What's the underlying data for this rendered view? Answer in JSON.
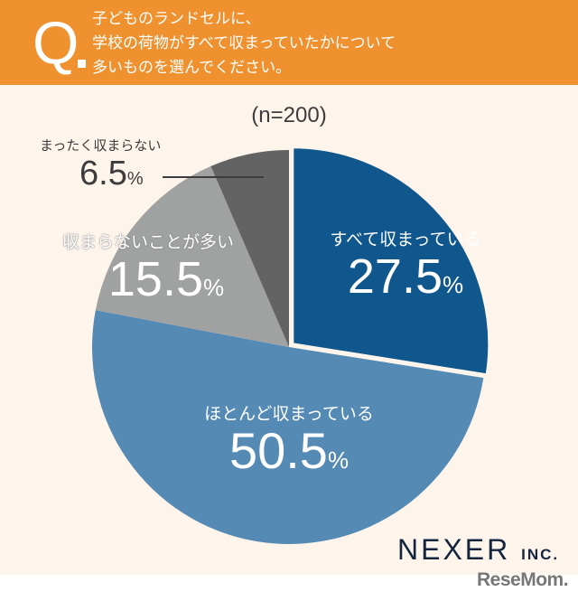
{
  "header": {
    "q_mark": "Q",
    "question_lines": [
      "子どものランドセルに、",
      "学校の荷物がすべて収まっていたかについて",
      "多いものを選んでください。"
    ],
    "color": "#ef912e"
  },
  "sample_size": "(n=200)",
  "labels": {
    "s0": {
      "category": "すべて収まっている",
      "value": "27.5",
      "unit": "%"
    },
    "s1": {
      "category": "ほとんど収まっている",
      "value": "50.5",
      "unit": "%"
    },
    "s2": {
      "category": "収まらないことが多い",
      "value": "15.5",
      "unit": "%"
    },
    "s3": {
      "category": "まったく収まらない",
      "value": "6.5",
      "unit": "%"
    }
  },
  "branding": {
    "company": "NEXER",
    "company_suffix": "INC.",
    "source_logo": "ReseMom."
  },
  "chart_data": {
    "type": "pie",
    "title": "子どものランドセルに、学校の荷物がすべて収まっていたかについて多いものを選んでください。",
    "subtitle": "(n=200)",
    "categories": [
      "すべて収まっている",
      "ほとんど収まっている",
      "収まらないことが多い",
      "まったく収まらない"
    ],
    "values": [
      27.5,
      50.5,
      15.5,
      6.5
    ],
    "unit": "%",
    "colors": [
      "#0f578c",
      "#558ab4",
      "#a0a2a2",
      "#646364"
    ],
    "start_angle": "12 o'clock, clockwise",
    "exploded": [
      "すべて収まっている"
    ],
    "legend": "none (labels inside slices)"
  }
}
